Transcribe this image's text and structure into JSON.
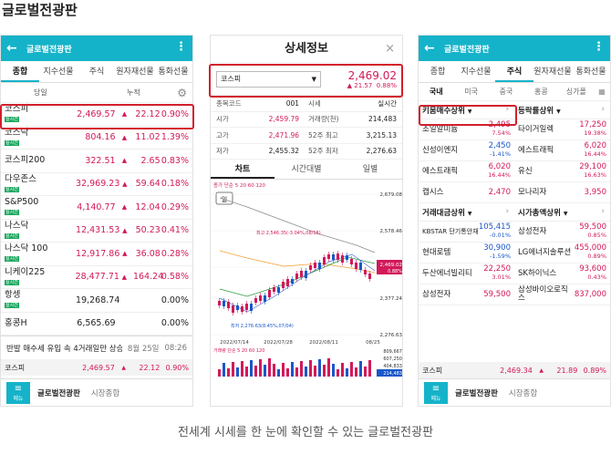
{
  "page_title": "글로벌전광판",
  "caption": "전세계 시세를 한 눈에 확인할 수 있는 글로벌전광판",
  "colors": {
    "accent": "#15b3c9",
    "up": "#d2195a",
    "down": "#1a57c9",
    "highlight": "#d21f2c"
  },
  "panel1": {
    "appbar_title": "글로벌전광판",
    "tabs": [
      "종합",
      "지수선물",
      "주식",
      "원자재선물",
      "통화선물"
    ],
    "active_tab": 0,
    "sub_left": "당일",
    "sub_right": "누적",
    "rows": [
      {
        "name": "코스피",
        "tag": "실시간",
        "price": "2,469.57",
        "arrow": "▲",
        "change": "22.12",
        "pct": "0.90%",
        "flat": false
      },
      {
        "name": "코스닥",
        "tag": "실시간",
        "price": "804.16",
        "arrow": "▲",
        "change": "11.02",
        "pct": "1.39%",
        "flat": false
      },
      {
        "name": "코스피200",
        "tag": "",
        "price": "322.51",
        "arrow": "▲",
        "change": "2.65",
        "pct": "0.83%",
        "flat": false
      },
      {
        "name": "다우존스",
        "tag": "실시간",
        "price": "32,969.23",
        "arrow": "▲",
        "change": "59.64",
        "pct": "0.18%",
        "flat": false
      },
      {
        "name": "S&P500",
        "tag": "실시간",
        "price": "4,140.77",
        "arrow": "▲",
        "change": "12.04",
        "pct": "0.29%",
        "flat": false
      },
      {
        "name": "나스닥",
        "tag": "실시간",
        "price": "12,431.53",
        "arrow": "▲",
        "change": "50.23",
        "pct": "0.41%",
        "flat": false
      },
      {
        "name": "나스닥 100",
        "tag": "실시간",
        "price": "12,917.86",
        "arrow": "▲",
        "change": "36.08",
        "pct": "0.28%",
        "flat": false
      },
      {
        "name": "니케이225",
        "tag": "실시간",
        "price": "28,477.71",
        "arrow": "▲",
        "change": "164.24",
        "pct": "0.58%",
        "flat": false
      },
      {
        "name": "항셍",
        "tag": "실시간",
        "price": "19,268.74",
        "arrow": "",
        "change": "",
        "pct": "0.00%",
        "flat": true
      },
      {
        "name": "홍콩H",
        "tag": "",
        "price": "6,565.69",
        "arrow": "",
        "change": "",
        "pct": "0.00%",
        "flat": true
      }
    ],
    "news": {
      "headline": "반발 매수세 유입 속 4거래일만 상승...",
      "date": "8월 25일",
      "time": "08:26"
    },
    "footer_index": {
      "name": "코스피",
      "price": "2,469.57",
      "arrow": "▲",
      "change": "22.12",
      "pct": "0.90%"
    },
    "footer": {
      "menu": "메뉴",
      "tab_a": "글로벌전광판",
      "tab_b": "시장종합"
    }
  },
  "panel2": {
    "title": "상세정보",
    "close": "×",
    "select": "코스피",
    "price": "2,469.02",
    "change_arrow": "▲",
    "change": "21.57",
    "pct": "0.88%",
    "info": [
      {
        "l1": "종목코드",
        "v1": "001",
        "l2": "시세",
        "v2": "실시간"
      },
      {
        "l1": "시가",
        "v1": "2,459.79",
        "l2": "거래량(천)",
        "v2": "214,483"
      },
      {
        "l1": "고가",
        "v1": "2,471.96",
        "l2": "52주 최고",
        "v2": "3,215.13"
      },
      {
        "l1": "저가",
        "v1": "2,455.32",
        "l2": "52주 최저",
        "v2": "2,276.63"
      }
    ],
    "chart_tabs": [
      "차트",
      "시간대별",
      "일별"
    ],
    "chart_legend": "종가 단순 5 20 60 120",
    "period_btn": "일",
    "max_label": "최고 2,546.35(-3.04%,08/16)",
    "min_label": "최저 2,276.63(8.45%,07/04)",
    "dates": [
      "2022/07/14",
      "2022/07/28",
      "2022/08/11",
      "08/25"
    ],
    "price_ticks": [
      "2,679.08",
      "2,578.46",
      "2,469.02",
      "2,377.24",
      "2,276.63"
    ],
    "cur_pct_label": "0.88%",
    "vol_legend": "거래량 단순 5 20 60 120",
    "vol_ticks": [
      "809,667",
      "607,250",
      "404,833",
      "214,483"
    ]
  },
  "panel3": {
    "appbar_title": "글로벌전광판",
    "tabs": [
      "종합",
      "지수선물",
      "주식",
      "원자재선물",
      "통화선물"
    ],
    "active_tab": 2,
    "subtabs": [
      "국내",
      "미국",
      "중국",
      "홍콩",
      "싱가폴"
    ],
    "sec1": {
      "left": "키움매수상위",
      "right": "등락률상위"
    },
    "grid1": [
      {
        "name": "조일알미늄",
        "price": "2,495",
        "pct": "7.54%",
        "dir": "up"
      },
      {
        "name": "타이거일렉",
        "price": "17,250",
        "pct": "19.38%",
        "dir": "up"
      },
      {
        "name": "신성이엔지",
        "price": "2,450",
        "pct": "-1.41%",
        "dir": "dn"
      },
      {
        "name": "에스트래픽",
        "price": "6,020",
        "pct": "16.44%",
        "dir": "up"
      },
      {
        "name": "에스트래픽",
        "price": "6,020",
        "pct": "16.44%",
        "dir": "up"
      },
      {
        "name": "유신",
        "price": "29,100",
        "pct": "16.63%",
        "dir": "up"
      },
      {
        "name": "캡시스",
        "price": "2,470",
        "pct": "",
        "dir": "up"
      },
      {
        "name": "모나리자",
        "price": "3,950",
        "pct": "",
        "dir": "up"
      }
    ],
    "sec2": {
      "left": "거래대금상위",
      "right": "시가총액상위"
    },
    "grid2": [
      {
        "name": "KBSTAR 단기통안채",
        "price": "105,415",
        "pct": "-0.01%",
        "dir": "dn"
      },
      {
        "name": "삼성전자",
        "price": "59,500",
        "pct": "0.85%",
        "dir": "up"
      },
      {
        "name": "현대로템",
        "price": "30,900",
        "pct": "-1.59%",
        "dir": "dn"
      },
      {
        "name": "LG에너지솔루션",
        "price": "455,000",
        "pct": "0.89%",
        "dir": "up"
      },
      {
        "name": "두산에너빌리티",
        "price": "22,250",
        "pct": "3.01%",
        "dir": "up"
      },
      {
        "name": "SK하이닉스",
        "price": "93,600",
        "pct": "0.43%",
        "dir": "up"
      },
      {
        "name": "삼성전자",
        "price": "59,500",
        "pct": "",
        "dir": "up"
      },
      {
        "name": "삼성바이오로직스",
        "price": "837,000",
        "pct": "",
        "dir": "up"
      }
    ],
    "footer_index": {
      "name": "코스피",
      "price": "2,469.34",
      "arrow": "▲",
      "change": "21.89",
      "pct": "0.89%"
    },
    "footer": {
      "menu": "메뉴",
      "tab_a": "글로벌전광판",
      "tab_b": "시장종합"
    }
  }
}
